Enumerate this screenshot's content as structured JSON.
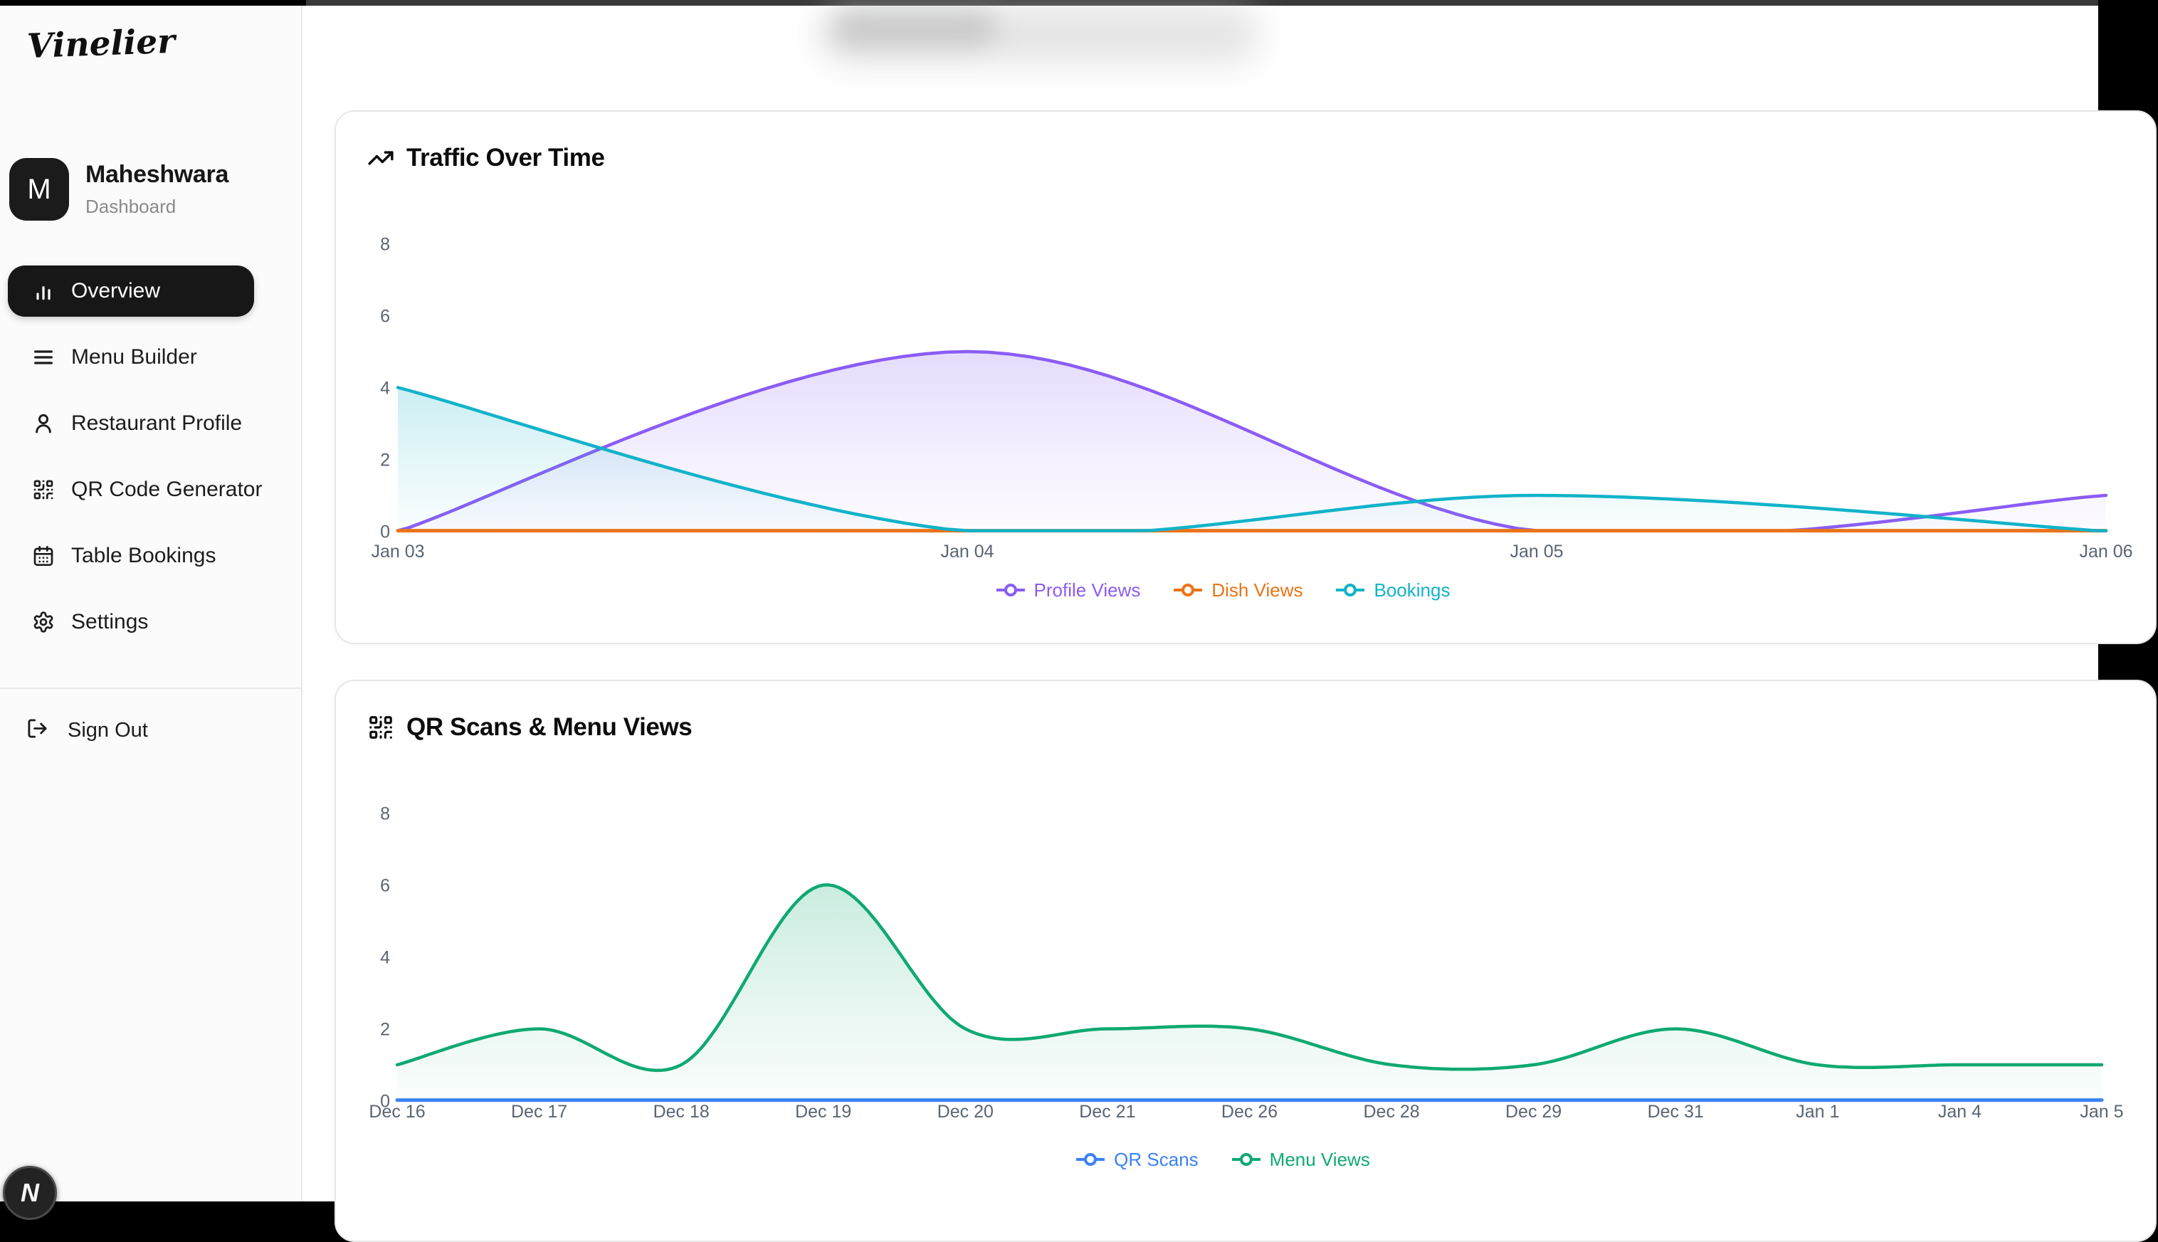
{
  "sidebar": {
    "logo": "Vinelier",
    "user": {
      "initial": "M",
      "name": "Maheshwara",
      "subtitle": "Dashboard"
    },
    "nav": [
      {
        "label": "Overview",
        "icon": "chart-column-icon",
        "active": true
      },
      {
        "label": "Menu Builder",
        "icon": "menu-rows-icon",
        "active": false
      },
      {
        "label": "Restaurant Profile",
        "icon": "user-icon",
        "active": false
      },
      {
        "label": "QR Code Generator",
        "icon": "qr-code-icon",
        "active": false
      },
      {
        "label": "Table Bookings",
        "icon": "calendar-icon",
        "active": false
      },
      {
        "label": "Settings",
        "icon": "gear-icon",
        "active": false
      }
    ],
    "sign_out": {
      "label": "Sign Out",
      "icon": "log-out-icon"
    }
  },
  "dev_badge": {
    "label": "N"
  },
  "colors": {
    "profile_views": "#8b5cf6",
    "dish_views": "#ee7215",
    "bookings": "#12b3c9",
    "qr_scans": "#3b82f6",
    "menu_views": "#0fa971",
    "active_nav_bg": "#171717",
    "window_bg": "#000000",
    "sidebar_bg": "#fbfbfb"
  },
  "chart_data": [
    {
      "type": "area",
      "title": "Traffic Over Time",
      "icon": "trending-up-icon",
      "x": [
        "Jan 03",
        "Jan 04",
        "Jan 05",
        "Jan 06"
      ],
      "y_ticks": [
        0,
        2,
        4,
        6,
        8
      ],
      "ylim": [
        0,
        8
      ],
      "grid": false,
      "legend_position": "bottom",
      "series": [
        {
          "name": "Profile Views",
          "color": "#8b5cf6",
          "values": [
            0,
            5,
            0,
            1
          ]
        },
        {
          "name": "Dish Views",
          "color": "#ee7215",
          "values": [
            0,
            0,
            0,
            0
          ]
        },
        {
          "name": "Bookings",
          "color": "#12b3c9",
          "values": [
            4,
            0,
            1,
            0
          ]
        }
      ]
    },
    {
      "type": "area",
      "title": "QR Scans & Menu Views",
      "icon": "qr-code-icon",
      "x": [
        "Dec 16",
        "Dec 17",
        "Dec 18",
        "Dec 19",
        "Dec 20",
        "Dec 21",
        "Dec 26",
        "Dec 28",
        "Dec 29",
        "Dec 31",
        "Jan 1",
        "Jan 4",
        "Jan 5"
      ],
      "y_ticks": [
        0,
        2,
        4,
        6,
        8
      ],
      "ylim": [
        0,
        8
      ],
      "grid": false,
      "legend_position": "bottom",
      "series": [
        {
          "name": "QR Scans",
          "color": "#3b82f6",
          "values": [
            0,
            0,
            0,
            0,
            0,
            0,
            0,
            0,
            0,
            0,
            0,
            0,
            0
          ]
        },
        {
          "name": "Menu Views",
          "color": "#0fa971",
          "values": [
            1,
            2,
            1,
            6,
            2,
            2,
            2,
            1,
            1,
            2,
            1,
            1,
            1
          ]
        }
      ]
    }
  ]
}
